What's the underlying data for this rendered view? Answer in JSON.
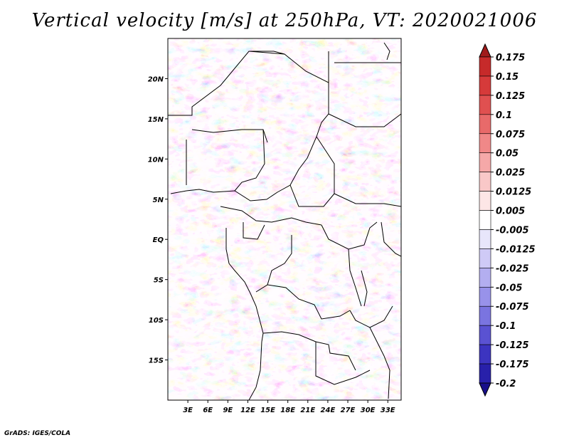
{
  "title": "Vertical velocity [m/s] at 250hPa, VT: 2020021006",
  "credit": "GrADS: IGES/COLA",
  "map": {
    "lon_range": [
      0,
      35
    ],
    "lat_range": [
      -20,
      25
    ],
    "lat_ticks": [
      {
        "value": 20,
        "label": "20N"
      },
      {
        "value": 15,
        "label": "15N"
      },
      {
        "value": 10,
        "label": "10N"
      },
      {
        "value": 5,
        "label": "5N"
      },
      {
        "value": 0,
        "label": "EQ"
      },
      {
        "value": -5,
        "label": "5S"
      },
      {
        "value": -10,
        "label": "10S"
      },
      {
        "value": -15,
        "label": "15S"
      }
    ],
    "lon_ticks": [
      {
        "value": 3,
        "label": "3E"
      },
      {
        "value": 6,
        "label": "6E"
      },
      {
        "value": 9,
        "label": "9E"
      },
      {
        "value": 12,
        "label": "12E"
      },
      {
        "value": 15,
        "label": "15E"
      },
      {
        "value": 18,
        "label": "18E"
      },
      {
        "value": 21,
        "label": "21E"
      },
      {
        "value": 24,
        "label": "24E"
      },
      {
        "value": 27,
        "label": "27E"
      },
      {
        "value": 30,
        "label": "30E"
      },
      {
        "value": 33,
        "label": "33E"
      }
    ]
  },
  "colorbar": {
    "labels": [
      "0.175",
      "0.15",
      "0.125",
      "0.1",
      "0.075",
      "0.05",
      "0.025",
      "0.0125",
      "0.005",
      "-0.005",
      "-0.0125",
      "-0.025",
      "-0.05",
      "-0.075",
      "-0.1",
      "-0.125",
      "-0.175",
      "-0.2"
    ],
    "colors": [
      "#a01b1b",
      "#c62a2a",
      "#d63a3a",
      "#e05050",
      "#e86a6a",
      "#f08888",
      "#f5a8a8",
      "#f9c8c8",
      "#fde6e6",
      "#ffffff",
      "#e8e6fb",
      "#cfcaf6",
      "#b3aef0",
      "#9892ea",
      "#7a74e0",
      "#5a52d2",
      "#3c34c0",
      "#2820aa",
      "#180f8a"
    ]
  }
}
